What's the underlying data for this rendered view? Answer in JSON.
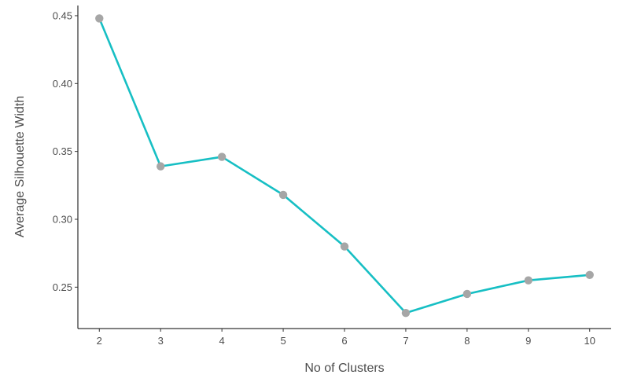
{
  "chart_data": {
    "type": "line",
    "title": "",
    "xlabel": "No of Clusters",
    "ylabel": "Average Silhouette Width",
    "x": [
      2,
      3,
      4,
      5,
      6,
      7,
      8,
      9,
      10
    ],
    "series": [
      {
        "values": [
          0.448,
          0.339,
          0.346,
          0.318,
          0.28,
          0.231,
          0.245,
          0.255,
          0.259
        ]
      }
    ],
    "xticks": [
      2,
      3,
      4,
      5,
      6,
      7,
      8,
      9,
      10
    ],
    "yticks": [
      0.25,
      0.3,
      0.35,
      0.4,
      0.45
    ],
    "ytick_labels": [
      "0.25",
      "0.30",
      "0.35",
      "0.40",
      "0.45"
    ],
    "xlim": [
      1.65,
      10.35
    ],
    "ylim": [
      0.2195,
      0.4575
    ],
    "grid": false,
    "legend": "none",
    "line_color": "#17bfc4",
    "point_color": "#a6a6a6"
  }
}
